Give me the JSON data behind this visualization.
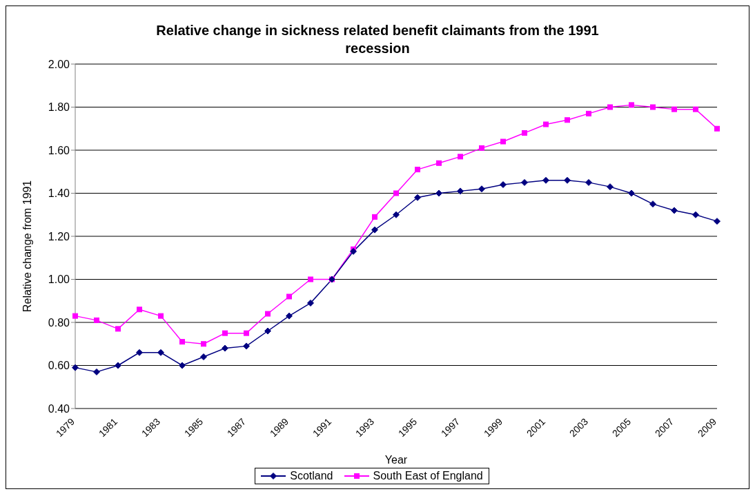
{
  "chart_data": {
    "type": "line",
    "title": "Relative change in sickness related benefit claimants from the 1991 recession",
    "xlabel": "Year",
    "ylabel": "Relative change from 1991",
    "categories": [
      "1979",
      null,
      "1981",
      null,
      "1983",
      null,
      "1985",
      null,
      "1987",
      null,
      "1989",
      null,
      "1991",
      null,
      "1993",
      null,
      "1995",
      null,
      "1997",
      null,
      "1999",
      null,
      "2001",
      null,
      "2003",
      null,
      "2005",
      null,
      "2007",
      null,
      "2009"
    ],
    "series": [
      {
        "name": "Scotland",
        "color": "#000080",
        "marker": "diamond",
        "values": [
          0.59,
          0.57,
          0.6,
          0.66,
          0.66,
          0.6,
          0.64,
          0.68,
          0.69,
          0.76,
          0.83,
          0.89,
          1.0,
          1.13,
          1.23,
          1.3,
          1.38,
          1.4,
          1.41,
          1.42,
          1.44,
          1.45,
          1.46,
          1.46,
          1.45,
          1.43,
          1.4,
          1.35,
          1.32,
          1.3,
          1.27
        ]
      },
      {
        "name": "South East of England",
        "color": "#ff00ff",
        "marker": "square",
        "values": [
          0.83,
          0.81,
          0.77,
          0.86,
          0.83,
          0.71,
          0.7,
          0.75,
          0.75,
          0.84,
          0.92,
          1.0,
          1.0,
          1.14,
          1.29,
          1.4,
          1.51,
          1.54,
          1.57,
          1.61,
          1.64,
          1.68,
          1.72,
          1.74,
          1.77,
          1.8,
          1.81,
          1.8,
          1.79,
          1.79,
          1.7
        ]
      }
    ],
    "ylim": [
      0.4,
      2.0
    ],
    "yticks": [
      {
        "value": 0.4,
        "label": "0.40"
      },
      {
        "value": 0.6,
        "label": "0.60"
      },
      {
        "value": 0.8,
        "label": "0.80"
      },
      {
        "value": 1.0,
        "label": "1.00"
      },
      {
        "value": 1.2,
        "label": "1.20"
      },
      {
        "value": 1.4,
        "label": "1.40"
      },
      {
        "value": 1.6,
        "label": "1.60"
      },
      {
        "value": 1.8,
        "label": "1.80"
      },
      {
        "value": 2.0,
        "label": "2.00"
      }
    ],
    "grid": "y",
    "legend": "bottom",
    "line_style": "solid"
  }
}
